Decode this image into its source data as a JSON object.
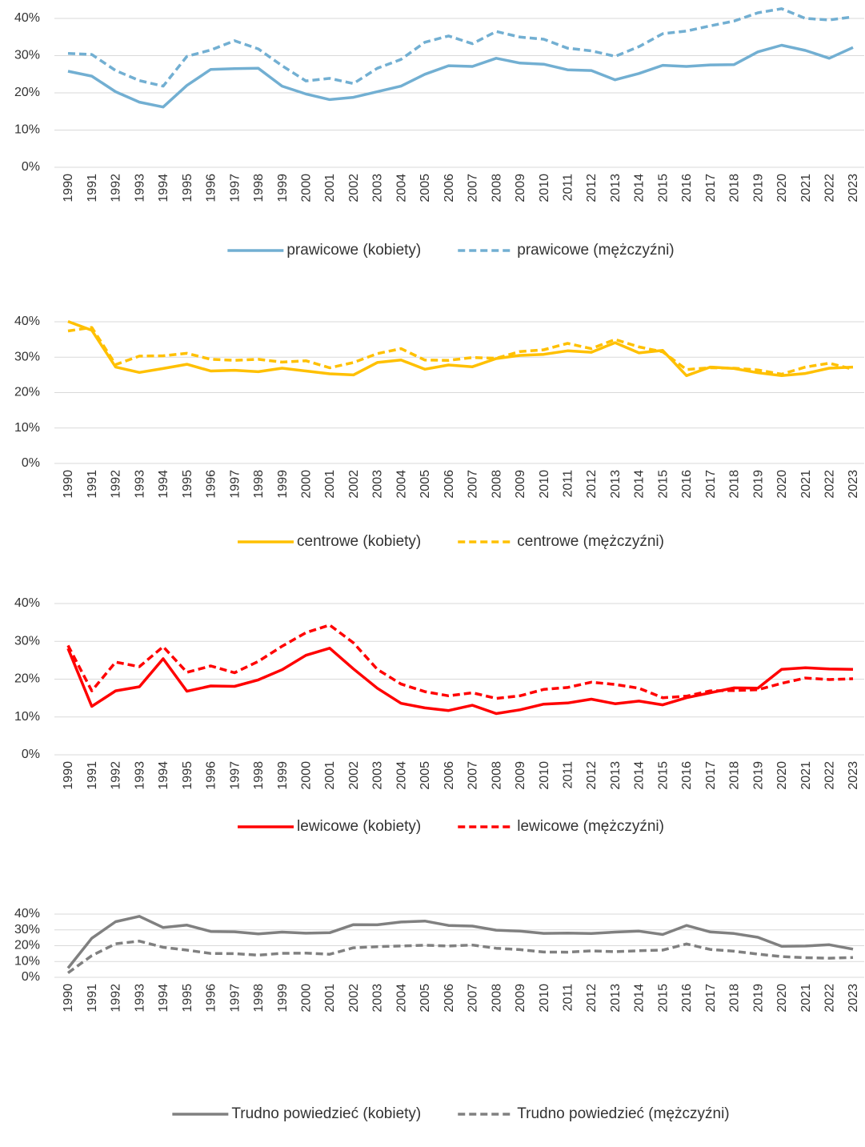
{
  "chart_data": [
    {
      "type": "line",
      "categories": [
        "1990",
        "1991",
        "1992",
        "1993",
        "1994",
        "1995",
        "1996",
        "1997",
        "1998",
        "1999",
        "2000",
        "2001",
        "2002",
        "2003",
        "2004",
        "2005",
        "2006",
        "2007",
        "2008",
        "2009",
        "2010",
        "2011",
        "2012",
        "2013",
        "2014",
        "2015",
        "2016",
        "2017",
        "2018",
        "2019",
        "2020",
        "2021",
        "2022",
        "2023"
      ],
      "series": [
        {
          "name": "prawicowe (kobiety)",
          "color": "#72afd2",
          "dash": false,
          "values": [
            25.8,
            24.5,
            20.3,
            17.5,
            16.2,
            22,
            26.3,
            26.5,
            26.6,
            21.8,
            19.7,
            18.2,
            18.8,
            20.3,
            21.8,
            25,
            27.3,
            27.1,
            29.3,
            28,
            27.7,
            26.2,
            26,
            23.5,
            25.2,
            27.4,
            27.1,
            27.5,
            27.6,
            31,
            32.8,
            31.4,
            29.3,
            32.2
          ]
        },
        {
          "name": "prawicowe (mężczyźni)",
          "color": "#72afd2",
          "dash": true,
          "values": [
            30.6,
            30.3,
            26,
            23.3,
            21.8,
            29.8,
            31.5,
            34,
            31.8,
            27.3,
            23.2,
            23.9,
            22.5,
            26.6,
            29,
            33.6,
            35.3,
            33.2,
            36.5,
            35,
            34.4,
            32,
            31.3,
            29.8,
            32.4,
            35.9,
            36.6,
            38,
            39.3,
            41.5,
            42.6,
            40,
            39.6,
            40.4
          ]
        }
      ],
      "ylim": [
        0,
        40
      ],
      "yticks": [
        {
          "value": 0,
          "label": "0%"
        },
        {
          "value": 10,
          "label": "10%"
        },
        {
          "value": 20,
          "label": "20%"
        },
        {
          "value": 30,
          "label": "30%"
        },
        {
          "value": 40,
          "label": "40%"
        }
      ],
      "grid": true,
      "legend": "bottom"
    },
    {
      "type": "line",
      "categories": [
        "1990",
        "1991",
        "1992",
        "1993",
        "1994",
        "1995",
        "1996",
        "1997",
        "1998",
        "1999",
        "2000",
        "2001",
        "2002",
        "2003",
        "2004",
        "2005",
        "2006",
        "2007",
        "2008",
        "2009",
        "2010",
        "2011",
        "2012",
        "2013",
        "2014",
        "2015",
        "2016",
        "2017",
        "2018",
        "2019",
        "2020",
        "2021",
        "2022",
        "2023"
      ],
      "series": [
        {
          "name": "centrowe (kobiety)",
          "color": "#ffc000",
          "dash": false,
          "values": [
            40.1,
            37.6,
            27.2,
            25.7,
            26.8,
            28,
            26.1,
            26.3,
            25.9,
            26.9,
            26.1,
            25.3,
            25,
            28.5,
            29.2,
            26.6,
            27.8,
            27.3,
            29.6,
            30.5,
            30.8,
            31.8,
            31.4,
            34.1,
            31.2,
            31.9,
            24.8,
            27.2,
            26.8,
            25.6,
            24.8,
            25.4,
            26.9,
            27.2
          ]
        },
        {
          "name": "centrowe (mężczyźni)",
          "color": "#ffc000",
          "dash": true,
          "values": [
            37.4,
            38.4,
            27.9,
            30.3,
            30.4,
            31.1,
            29.4,
            29.1,
            29.4,
            28.6,
            29,
            27,
            28.5,
            31,
            32.4,
            29.2,
            29.1,
            29.9,
            29.7,
            31.6,
            32.1,
            33.9,
            32.4,
            35,
            32.9,
            31.5,
            26.5,
            27,
            26.9,
            26.4,
            25.2,
            27.2,
            28.3,
            26.6
          ]
        }
      ],
      "ylim": [
        0,
        40
      ],
      "yticks": [
        {
          "value": 0,
          "label": "0%"
        },
        {
          "value": 10,
          "label": "10%"
        },
        {
          "value": 20,
          "label": "20%"
        },
        {
          "value": 30,
          "label": "30%"
        },
        {
          "value": 40,
          "label": "40%"
        }
      ],
      "grid": true,
      "legend": "bottom"
    },
    {
      "type": "line",
      "categories": [
        "1990",
        "1991",
        "1992",
        "1993",
        "1994",
        "1995",
        "1996",
        "1997",
        "1998",
        "1999",
        "2000",
        "2001",
        "2002",
        "2003",
        "2004",
        "2005",
        "2006",
        "2007",
        "2008",
        "2009",
        "2010",
        "2011",
        "2012",
        "2013",
        "2014",
        "2015",
        "2016",
        "2017",
        "2018",
        "2019",
        "2020",
        "2021",
        "2022",
        "2023"
      ],
      "series": [
        {
          "name": "lewicowe (kobiety)",
          "color": "#ff0000",
          "dash": false,
          "values": [
            28.1,
            12.8,
            16.9,
            18,
            25.4,
            16.8,
            18.2,
            18.1,
            19.8,
            22.5,
            26.3,
            28.2,
            22.7,
            17.6,
            13.6,
            12.4,
            11.7,
            13.1,
            10.9,
            11.9,
            13.4,
            13.7,
            14.7,
            13.5,
            14.2,
            13.2,
            15.1,
            16.4,
            17.7,
            17.6,
            22.6,
            23,
            22.7,
            22.6
          ]
        },
        {
          "name": "lewicowe (mężczyźni)",
          "color": "#ff0000",
          "dash": true,
          "values": [
            28.9,
            16.9,
            24.5,
            23.3,
            28.6,
            21.8,
            23.5,
            21.7,
            24.7,
            28.7,
            32.3,
            34.3,
            29.6,
            22.6,
            18.7,
            16.7,
            15.6,
            16.4,
            14.9,
            15.6,
            17.3,
            17.8,
            19.2,
            18.6,
            17.6,
            15.1,
            15.5,
            16.9,
            17,
            17.2,
            18.9,
            20.3,
            19.9,
            20.1
          ]
        }
      ],
      "ylim": [
        0,
        40
      ],
      "yticks": [
        {
          "value": 0,
          "label": "0%"
        },
        {
          "value": 10,
          "label": "10%"
        },
        {
          "value": 20,
          "label": "20%"
        },
        {
          "value": 30,
          "label": "30%"
        },
        {
          "value": 40,
          "label": "40%"
        }
      ],
      "grid": true,
      "legend": "bottom"
    },
    {
      "type": "line",
      "categories": [
        "1990",
        "1991",
        "1992",
        "1993",
        "1994",
        "1995",
        "1996",
        "1997",
        "1998",
        "1999",
        "2000",
        "2001",
        "2002",
        "2003",
        "2004",
        "2005",
        "2006",
        "2007",
        "2008",
        "2009",
        "2010",
        "2011",
        "2012",
        "2013",
        "2014",
        "2015",
        "2016",
        "2017",
        "2018",
        "2019",
        "2020",
        "2021",
        "2022",
        "2023"
      ],
      "series": [
        {
          "name": "Trudno powiedzieć  (kobiety)",
          "color": "#808080",
          "dash": false,
          "values": [
            5.8,
            24.7,
            35.2,
            38.6,
            31.5,
            33,
            29,
            28.8,
            27.5,
            28.6,
            27.9,
            28.2,
            33.3,
            33.2,
            35,
            35.6,
            32.8,
            32.4,
            29.8,
            29.2,
            27.8,
            28,
            27.7,
            28.6,
            29.2,
            27.1,
            32.8,
            28.7,
            27.7,
            25.3,
            19.6,
            19.8,
            20.6,
            17.8
          ]
        },
        {
          "name": "Trudno powiedzieć (mężczyźni)",
          "color": "#808080",
          "dash": true,
          "values": [
            2.8,
            13.7,
            21.2,
            22.9,
            19,
            17.2,
            15.1,
            15,
            14,
            15.2,
            15.3,
            14.6,
            18.7,
            19.4,
            19.8,
            20.3,
            19.8,
            20.4,
            18.4,
            17.5,
            16,
            15.9,
            16.7,
            16.2,
            16.8,
            17.2,
            21.1,
            17.6,
            16.5,
            14.7,
            13.1,
            12.4,
            12.1,
            12.5
          ]
        }
      ],
      "ylim": [
        0,
        40
      ],
      "yticks": [
        {
          "value": 0,
          "label": "0%"
        },
        {
          "value": 10,
          "label": "10%"
        },
        {
          "value": 20,
          "label": "20%"
        },
        {
          "value": 30,
          "label": "30%"
        },
        {
          "value": 40,
          "label": "40%"
        }
      ],
      "grid": true,
      "legend": "bottom"
    }
  ]
}
